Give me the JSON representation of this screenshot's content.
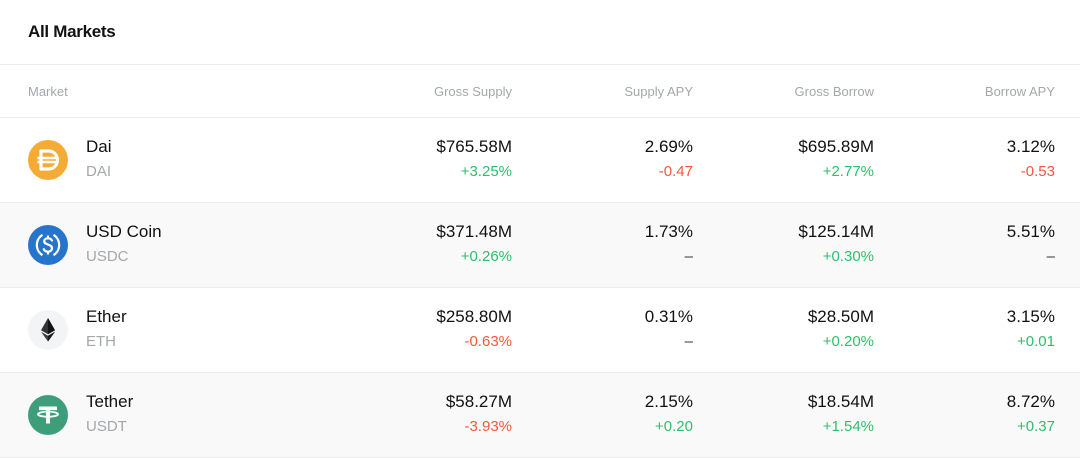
{
  "header": {
    "title": "All Markets"
  },
  "table": {
    "columns": [
      "Market",
      "Gross Supply",
      "Supply APY",
      "Gross Borrow",
      "Borrow APY"
    ],
    "rows": [
      {
        "name": "Dai",
        "symbol": "DAI",
        "icon": "dai-icon",
        "icon_color": "#f5ac37",
        "gross_supply": "$765.58M",
        "gross_supply_change": "+3.25%",
        "supply_apy": "2.69%",
        "supply_apy_change": "-0.47",
        "gross_borrow": "$695.89M",
        "gross_borrow_change": "+2.77%",
        "borrow_apy": "3.12%",
        "borrow_apy_change": "-0.53"
      },
      {
        "name": "USD Coin",
        "symbol": "USDC",
        "icon": "usdc-icon",
        "icon_color": "#2775ca",
        "gross_supply": "$371.48M",
        "gross_supply_change": "+0.26%",
        "supply_apy": "1.73%",
        "supply_apy_change": "–",
        "gross_borrow": "$125.14M",
        "gross_borrow_change": "+0.30%",
        "borrow_apy": "5.51%",
        "borrow_apy_change": "–"
      },
      {
        "name": "Ether",
        "symbol": "ETH",
        "icon": "ether-icon",
        "icon_color": "#f3f4f6",
        "gross_supply": "$258.80M",
        "gross_supply_change": "-0.63%",
        "supply_apy": "0.31%",
        "supply_apy_change": "–",
        "gross_borrow": "$28.50M",
        "gross_borrow_change": "+0.20%",
        "borrow_apy": "3.15%",
        "borrow_apy_change": "+0.01"
      },
      {
        "name": "Tether",
        "symbol": "USDT",
        "icon": "tether-icon",
        "icon_color": "#3f9e7a",
        "gross_supply": "$58.27M",
        "gross_supply_change": "-3.93%",
        "supply_apy": "2.15%",
        "supply_apy_change": "+0.20",
        "gross_borrow": "$18.54M",
        "gross_borrow_change": "+1.54%",
        "borrow_apy": "8.72%",
        "borrow_apy_change": "+0.37"
      }
    ]
  },
  "colors": {
    "positive": "#2fbe6b",
    "negative": "#f2583e",
    "muted": "#a4a7ab"
  }
}
